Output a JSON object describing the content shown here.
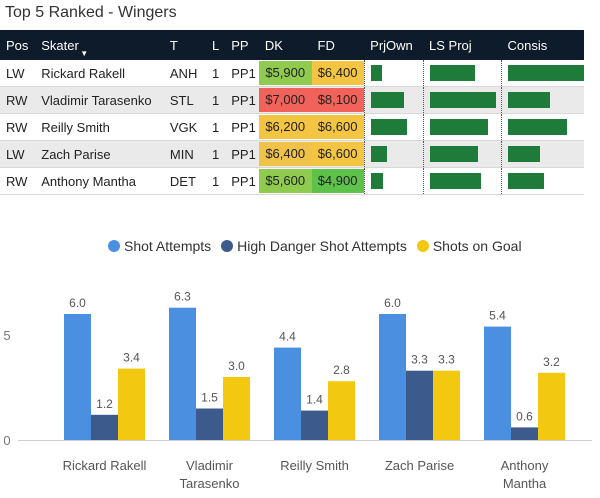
{
  "title": "Top 5 Ranked - Wingers",
  "table": {
    "headers": [
      "Pos",
      "Skater",
      "T",
      "L",
      "PP",
      "DK",
      "FD",
      "PrjOwn",
      "LS Proj",
      "Consis"
    ],
    "rows": [
      {
        "pos": "LW",
        "skater": "Rickard Rakell",
        "team": "ANH",
        "line": "1",
        "pp": "PP1",
        "dk": "$5,900",
        "fd": "$6,400",
        "dk_color": "#8fcb4f",
        "fd_color": "#f4c542",
        "prjown": 0.22,
        "lsproj": 0.68,
        "consis": 1.0
      },
      {
        "pos": "RW",
        "skater": "Vladimir Tarasenko",
        "team": "STL",
        "line": "1",
        "pp": "PP1",
        "dk": "$7,000",
        "fd": "$8,100",
        "dk_color": "#f0625a",
        "fd_color": "#f0625a",
        "prjown": 0.65,
        "lsproj": 1.0,
        "consis": 0.55
      },
      {
        "pos": "RW",
        "skater": "Reilly Smith",
        "team": "VGK",
        "line": "1",
        "pp": "PP1",
        "dk": "$6,200",
        "fd": "$6,600",
        "dk_color": "#f4c542",
        "fd_color": "#f4c542",
        "prjown": 0.72,
        "lsproj": 0.88,
        "consis": 0.78
      },
      {
        "pos": "LW",
        "skater": "Zach Parise",
        "team": "MIN",
        "line": "1",
        "pp": "PP1",
        "dk": "$6,400",
        "fd": "$6,600",
        "dk_color": "#f0c24a",
        "fd_color": "#f4c542",
        "prjown": 0.32,
        "lsproj": 0.72,
        "consis": 0.42
      },
      {
        "pos": "RW",
        "skater": "Anthony Mantha",
        "team": "DET",
        "line": "1",
        "pp": "PP1",
        "dk": "$5,600",
        "fd": "$4,900",
        "dk_color": "#8fcb4f",
        "fd_color": "#5ec24a",
        "prjown": 0.24,
        "lsproj": 0.78,
        "consis": 0.47
      }
    ]
  },
  "chart_data": {
    "type": "bar",
    "categories": [
      "Rickard Rakell",
      "Vladimir Tarasenko",
      "Reilly Smith",
      "Zach Parise",
      "Anthony Mantha"
    ],
    "series": [
      {
        "name": "Shot Attempts",
        "color": "#4a8fe0",
        "values": [
          6.0,
          6.3,
          4.4,
          6.0,
          5.4
        ]
      },
      {
        "name": "High Danger Shot Attempts",
        "color": "#3c5a8c",
        "values": [
          1.2,
          1.5,
          1.4,
          3.3,
          0.6
        ]
      },
      {
        "name": "Shots on Goal",
        "color": "#f2c811",
        "values": [
          3.4,
          3.0,
          2.8,
          3.3,
          3.2
        ]
      }
    ],
    "yticks": [
      0,
      5
    ],
    "ylim": [
      0,
      7.2
    ],
    "title": "",
    "xlabel": "",
    "ylabel": "",
    "legend": "top"
  }
}
